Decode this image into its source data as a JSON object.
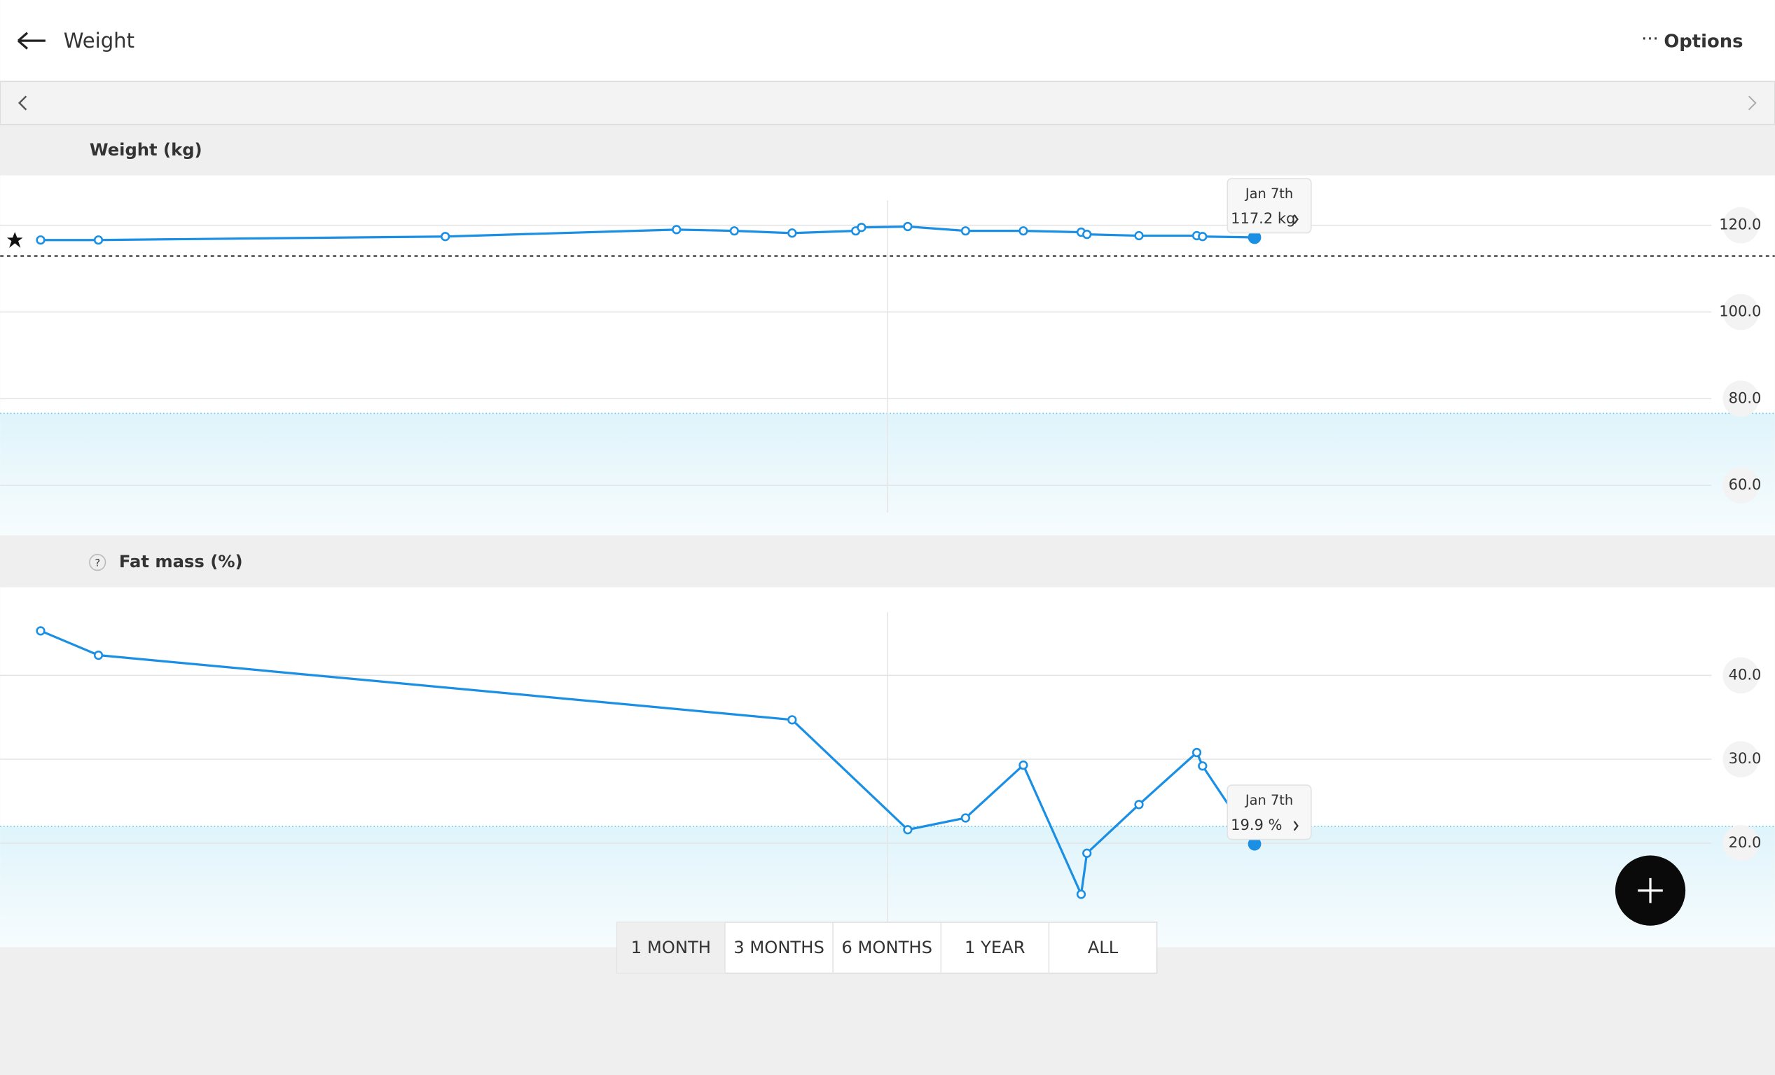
{
  "header": {
    "title": "Weight",
    "options": "Options"
  },
  "weight_chart": {
    "type": "line",
    "title": "Weight (kg)",
    "x": [
      -21,
      -20,
      -14,
      -10,
      -9,
      -8,
      -6.9,
      -6.8,
      -6,
      -5,
      -4,
      -3,
      -2.9,
      -2,
      -1,
      -0.9,
      0
    ],
    "values": [
      116.6,
      116.6,
      117.4,
      119,
      118.7,
      118.2,
      118.7,
      119.5,
      119.7,
      118.7,
      118.7,
      118.4,
      117.9,
      117.6,
      117.6,
      117.4,
      117.2
    ],
    "xlim": [
      -21.7,
      9
    ],
    "ylim": [
      48.5,
      131.5
    ],
    "yticks": [
      {
        "value": 60,
        "label": "60.0"
      },
      {
        "value": 80,
        "label": "80.0"
      },
      {
        "value": 100,
        "label": "100.0"
      },
      {
        "value": 120,
        "label": "120.0"
      }
    ],
    "color": "#1a8fe3",
    "target": 112.9,
    "range_top": 76.6,
    "tooltip": {
      "date": "Jan 7th",
      "value": "117.2 kg"
    }
  },
  "fat_chart": {
    "type": "line",
    "title": "Fat mass (%)",
    "help_icon": "?",
    "x": [
      -21,
      -20,
      -8,
      -6,
      -5,
      -4,
      -3,
      -2.9,
      -2,
      -1,
      -0.9,
      0
    ],
    "values": [
      45.3,
      42.4,
      34.7,
      21.6,
      23.0,
      29.3,
      13.9,
      18.8,
      24.6,
      30.8,
      29.2,
      19.9
    ],
    "xlim": [
      -21.7,
      9
    ],
    "ylim": [
      7.6,
      50.5
    ],
    "yticks": [
      {
        "value": 20,
        "label": "20.0"
      },
      {
        "value": 30,
        "label": "30.0"
      },
      {
        "value": 40,
        "label": "40.0"
      }
    ],
    "color": "#1a8fe3",
    "range_top": 22.0,
    "tooltip": {
      "date": "Jan 7th",
      "value": "19.9 %"
    }
  },
  "ranges": [
    "1 MONTH",
    "3 MONTHS",
    "6 MONTHS",
    "1 YEAR",
    "ALL"
  ]
}
